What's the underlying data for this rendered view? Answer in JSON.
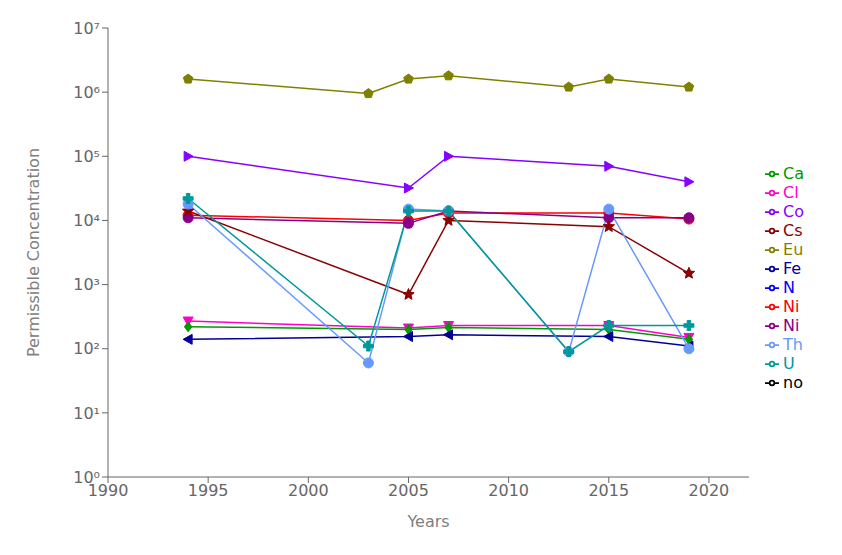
{
  "chart_data": {
    "type": "line",
    "x": [
      1994,
      2003,
      2005,
      2007,
      2013,
      2015,
      2019
    ],
    "series": [
      {
        "name": "no",
        "color": "#000000",
        "marker": "square",
        "values": [
          null,
          null,
          null,
          null,
          null,
          null,
          null
        ]
      },
      {
        "name": "Ni",
        "color": "#ff0000",
        "marker": "circle",
        "values": [
          12000,
          null,
          10000,
          13000,
          null,
          13000,
          10500
        ]
      },
      {
        "name": "N",
        "color": "#0000ff",
        "marker": "triangle_up",
        "values": [
          null,
          null,
          null,
          null,
          null,
          null,
          null
        ]
      },
      {
        "name": "Cl",
        "color": "#ff00cc",
        "marker": "triangle_down",
        "values": [
          270,
          null,
          210,
          230,
          null,
          230,
          150
        ]
      },
      {
        "name": "Ca",
        "color": "#009900",
        "marker": "diamond",
        "values": [
          220,
          null,
          200,
          215,
          null,
          200,
          140
        ]
      },
      {
        "name": "Fe",
        "color": "#000099",
        "marker": "triangle_left",
        "values": [
          140,
          null,
          155,
          165,
          null,
          155,
          110
        ]
      },
      {
        "name": "Co",
        "color": "#8800ff",
        "marker": "triangle_right",
        "values": [
          100000,
          null,
          32000,
          100000,
          null,
          70000,
          40000
        ]
      },
      {
        "name": "Ni",
        "color": "#880088",
        "marker": "circle",
        "values": [
          11000,
          null,
          9000,
          14000,
          null,
          11000,
          11000
        ]
      },
      {
        "name": "Cs",
        "color": "#8b0000",
        "marker": "star",
        "values": [
          14000,
          null,
          700,
          10000,
          null,
          8000,
          1500
        ]
      },
      {
        "name": "Eu",
        "color": "#808000",
        "marker": "pentagon",
        "values": [
          1600000,
          950000,
          1600000,
          1800000,
          1200000,
          1600000,
          1200000
        ]
      },
      {
        "name": "Th",
        "color": "#6699ff",
        "marker": "circle",
        "values": [
          18000,
          60,
          15000,
          14000,
          90,
          15000,
          100
        ]
      },
      {
        "name": "U",
        "color": "#009999",
        "marker": "plus",
        "values": [
          22000,
          110,
          14000,
          14000,
          90,
          230,
          230
        ]
      }
    ],
    "xlabel": "Years",
    "ylabel": "Permissible Concentration",
    "xlim": [
      1990,
      2022
    ],
    "ylim": [
      1,
      10000000
    ],
    "xticks": [
      1990,
      1995,
      2000,
      2005,
      2010,
      2015,
      2020
    ],
    "yticks": [
      {
        "value": 1,
        "label": "10⁰"
      },
      {
        "value": 10,
        "label": "10¹"
      },
      {
        "value": 100,
        "label": "10²"
      },
      {
        "value": 1000,
        "label": "10³"
      },
      {
        "value": 10000,
        "label": "10⁴"
      },
      {
        "value": 100000,
        "label": "10⁵"
      },
      {
        "value": 1000000,
        "label": "10⁶"
      },
      {
        "value": 10000000,
        "label": "10⁷"
      }
    ],
    "log": "y",
    "grid": false,
    "legend": "right"
  }
}
